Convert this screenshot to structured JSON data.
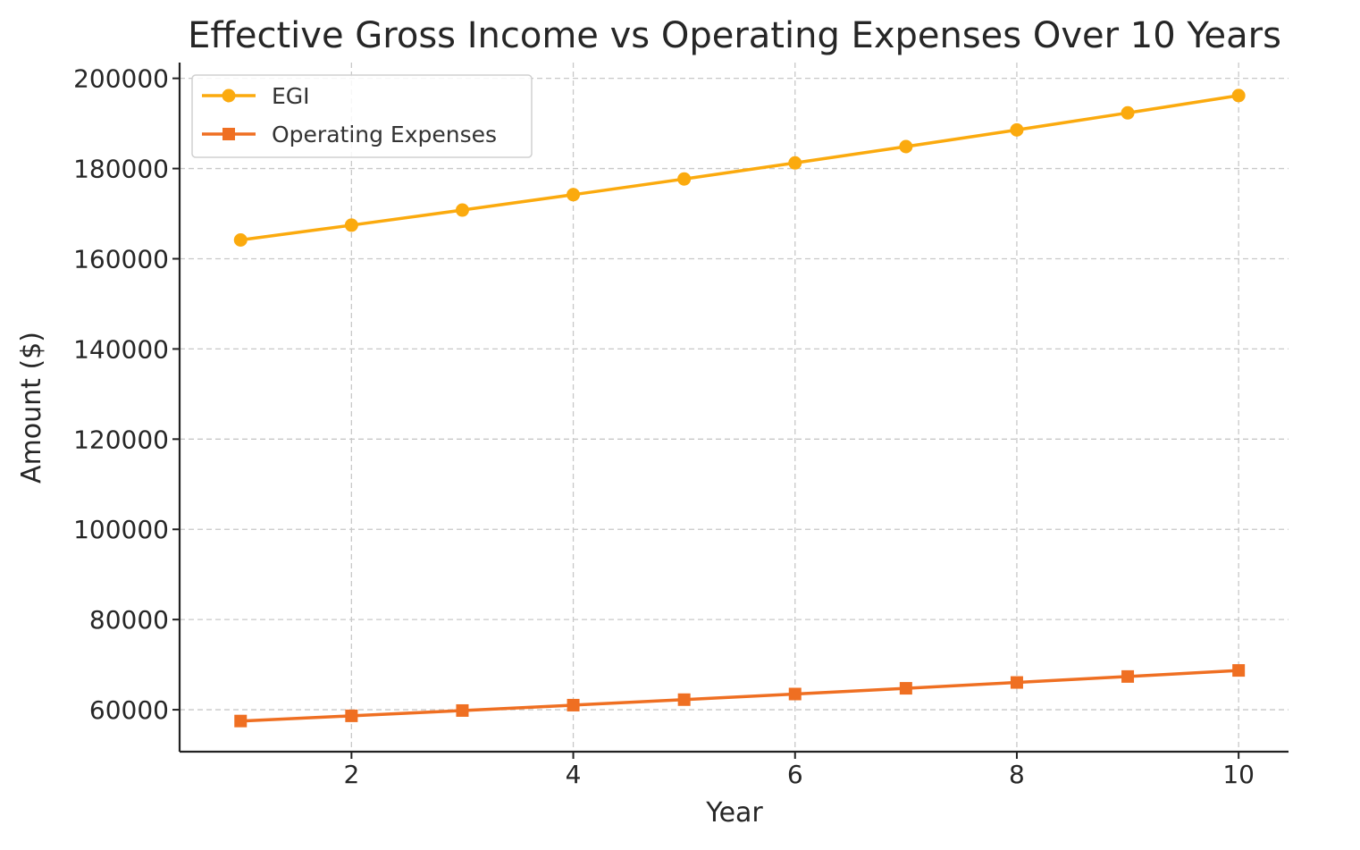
{
  "chart_data": {
    "type": "line",
    "title": "Effective Gross Income vs Operating Expenses Over 10 Years",
    "xlabel": "Year",
    "ylabel": "Amount ($)",
    "x": [
      1,
      2,
      3,
      4,
      5,
      6,
      7,
      8,
      9,
      10
    ],
    "xlim": [
      0.45,
      10.45
    ],
    "ylim": [
      50700,
      203500
    ],
    "xticks": [
      2,
      4,
      6,
      8,
      10
    ],
    "yticks": [
      60000,
      80000,
      100000,
      120000,
      140000,
      160000,
      180000,
      200000
    ],
    "grid": true,
    "legend_position": "top-left",
    "series": [
      {
        "name": "EGI",
        "marker": "circle",
        "color": "#FBAA0E",
        "values": [
          164160,
          167443,
          170792,
          174208,
          177692,
          181246,
          184871,
          188568,
          192340,
          196186
        ]
      },
      {
        "name": "Operating Expenses",
        "marker": "square",
        "color": "#EF6F22",
        "values": [
          57500,
          58650,
          59823,
          61019,
          62240,
          63485,
          64754,
          66049,
          67370,
          68718
        ]
      }
    ]
  }
}
